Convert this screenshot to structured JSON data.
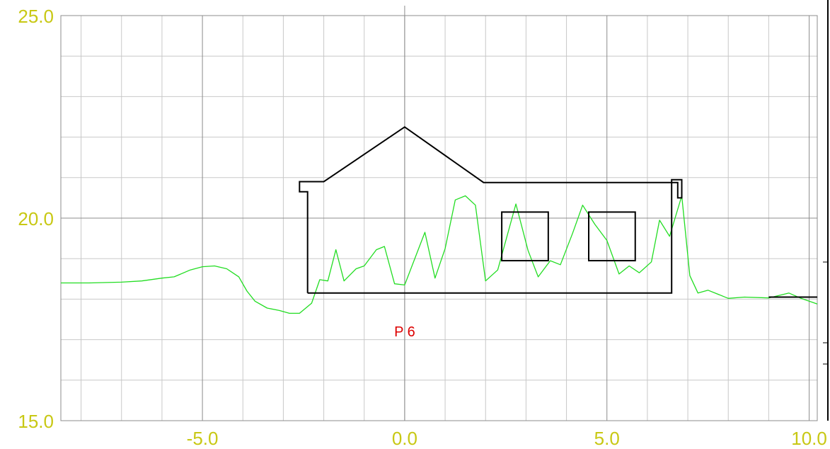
{
  "colors": {
    "tick_label": "#c8c814",
    "grid_minor": "#c8c8c8",
    "grid_major": "#8c8c8c",
    "terrain": "#22dd22",
    "building": "#000000",
    "marker": "#dd0000"
  },
  "chart_data": {
    "type": "line",
    "title": "",
    "xlabel": "",
    "ylabel": "",
    "xlim": [
      -8.5,
      10.2
    ],
    "ylim": [
      15.0,
      25.0
    ],
    "grid": true,
    "x_ticks": [
      -5.0,
      0.0,
      5.0,
      10.0
    ],
    "x_tick_labels": [
      "-5.0",
      "0.0",
      "5.0",
      "10.0"
    ],
    "y_ticks": [
      15.0,
      20.0,
      25.0
    ],
    "y_tick_labels": [
      "15.0",
      "20.0",
      "25.0"
    ],
    "minor_x_step": 1.0,
    "minor_y_step": 1.0,
    "marker_label": {
      "text": "P 6",
      "x": 0.0,
      "y": 17.2
    },
    "series": [
      {
        "values": [
          [
            -8.5,
            18.4
          ],
          [
            -7.8,
            18.4
          ],
          [
            -7.0,
            18.42
          ],
          [
            -6.5,
            18.45
          ],
          [
            -6.0,
            18.52
          ],
          [
            -5.7,
            18.55
          ],
          [
            -5.3,
            18.72
          ],
          [
            -5.0,
            18.8
          ],
          [
            -4.7,
            18.82
          ],
          [
            -4.4,
            18.75
          ],
          [
            -4.1,
            18.55
          ],
          [
            -3.9,
            18.2
          ],
          [
            -3.7,
            17.95
          ],
          [
            -3.4,
            17.78
          ],
          [
            -3.1,
            17.72
          ],
          [
            -2.85,
            17.65
          ],
          [
            -2.6,
            17.65
          ],
          [
            -2.3,
            17.9
          ],
          [
            -2.1,
            18.48
          ],
          [
            -1.9,
            18.45
          ],
          [
            -1.7,
            19.22
          ],
          [
            -1.5,
            18.45
          ],
          [
            -1.2,
            18.75
          ],
          [
            -1.0,
            18.82
          ],
          [
            -0.7,
            19.22
          ],
          [
            -0.5,
            19.3
          ],
          [
            -0.25,
            18.38
          ],
          [
            0.0,
            18.35
          ],
          [
            0.5,
            19.65
          ],
          [
            0.75,
            18.52
          ],
          [
            1.0,
            19.25
          ],
          [
            1.25,
            20.45
          ],
          [
            1.5,
            20.55
          ],
          [
            1.75,
            20.32
          ],
          [
            2.0,
            18.45
          ],
          [
            2.3,
            18.72
          ],
          [
            2.75,
            20.35
          ],
          [
            3.05,
            19.2
          ],
          [
            3.3,
            18.55
          ],
          [
            3.6,
            18.95
          ],
          [
            3.85,
            18.85
          ],
          [
            4.15,
            19.62
          ],
          [
            4.4,
            20.32
          ],
          [
            4.7,
            19.85
          ],
          [
            5.0,
            19.45
          ],
          [
            5.3,
            18.62
          ],
          [
            5.55,
            18.82
          ],
          [
            5.8,
            18.65
          ],
          [
            6.1,
            18.92
          ],
          [
            6.3,
            19.95
          ],
          [
            6.55,
            19.55
          ],
          [
            6.85,
            20.55
          ],
          [
            7.05,
            18.58
          ],
          [
            7.25,
            18.15
          ],
          [
            7.5,
            18.22
          ],
          [
            8.0,
            18.02
          ],
          [
            8.4,
            18.05
          ],
          [
            9.0,
            18.03
          ],
          [
            9.5,
            18.15
          ],
          [
            9.8,
            18.02
          ],
          [
            10.2,
            17.88
          ]
        ]
      }
    ],
    "building": {
      "outline": [
        [
          -2.4,
          18.15
        ],
        [
          -2.4,
          20.65
        ],
        [
          -2.6,
          20.65
        ],
        [
          -2.6,
          20.9
        ],
        [
          -2.0,
          20.9
        ],
        [
          0.0,
          22.25
        ],
        [
          1.95,
          20.88
        ],
        [
          6.75,
          20.88
        ],
        [
          6.75,
          20.5
        ],
        [
          6.85,
          20.5
        ],
        [
          6.85,
          20.95
        ],
        [
          6.6,
          20.95
        ],
        [
          6.6,
          18.15
        ],
        [
          -2.4,
          18.15
        ]
      ],
      "windows": [
        {
          "x0": 2.4,
          "x1": 3.55,
          "y0": 18.95,
          "y1": 20.15
        },
        {
          "x0": 4.55,
          "x1": 5.7,
          "y0": 18.95,
          "y1": 20.15
        }
      ]
    },
    "ground_line": {
      "x0": 9.0,
      "x1": 10.2,
      "y": 18.05
    }
  }
}
